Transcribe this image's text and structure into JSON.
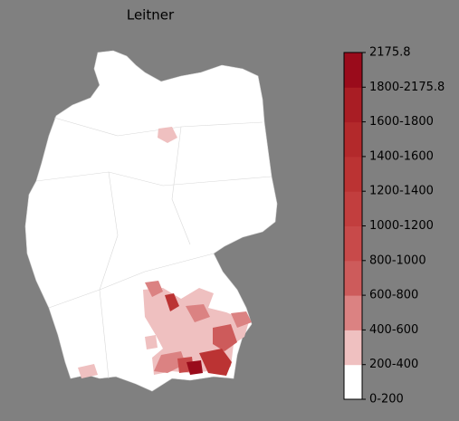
{
  "title": "Leitner",
  "colorbar": {
    "labels": [
      "0-200",
      "200-400",
      "400-600",
      "600-800",
      "800-1000",
      "1000-1200",
      "1200-1400",
      "1400-1600",
      "1600-1800",
      "1800-2175.8",
      "2175.8"
    ],
    "colors": [
      "#ffffff",
      "#efc0c0",
      "#db8282",
      "#cd5b5b",
      "#c84a4a",
      "#c23e3e",
      "#bb3333",
      "#b3292b",
      "#a91d24",
      "#9a0b1b"
    ]
  }
}
